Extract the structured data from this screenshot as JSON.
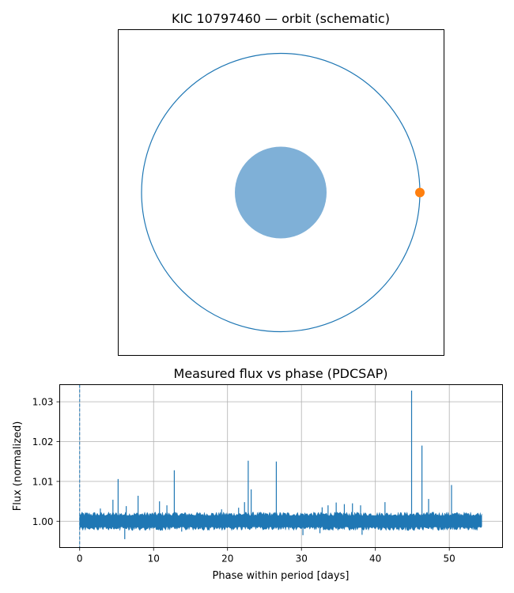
{
  "chart_data": [
    {
      "type": "scatter",
      "title": "KIC 10797460 — orbit (schematic)",
      "axes_visible": false,
      "orbit": {
        "shape": "circle",
        "color": "#1f77b4"
      },
      "star": {
        "color": "#7fb0d7"
      },
      "planet": {
        "position": "right",
        "color": "#ff7f0e"
      }
    },
    {
      "type": "line",
      "title": "Measured flux vs phase (PDCSAP)",
      "xlabel": "Phase within period [days]",
      "ylabel": "Flux (normalized)",
      "xlim": [
        -2.7,
        57.2
      ],
      "ylim": [
        0.9934,
        1.0343
      ],
      "xticks": [
        "0",
        "10",
        "20",
        "30",
        "40",
        "50"
      ],
      "xtick_values": [
        0,
        10,
        20,
        30,
        40,
        50
      ],
      "yticks": [
        "1.00",
        "1.01",
        "1.02",
        "1.03"
      ],
      "ytick_values": [
        1.0,
        1.01,
        1.02,
        1.03
      ],
      "grid": true,
      "series_color": "#1f77b4",
      "phase_range": [
        0,
        54.4
      ],
      "baseline": 1.0,
      "noise_band": [
        0.9985,
        1.0015
      ],
      "vertical_marker": {
        "x": 0,
        "style": "dashed",
        "color": "#1f77b4"
      },
      "spikes": [
        {
          "x": 2.8,
          "y": 1.0032
        },
        {
          "x": 4.5,
          "y": 1.0054
        },
        {
          "x": 5.2,
          "y": 1.0106
        },
        {
          "x": 6.3,
          "y": 1.0038
        },
        {
          "x": 7.9,
          "y": 1.0064
        },
        {
          "x": 10.8,
          "y": 1.005
        },
        {
          "x": 11.8,
          "y": 1.004
        },
        {
          "x": 12.8,
          "y": 1.0128
        },
        {
          "x": 19.2,
          "y": 1.003
        },
        {
          "x": 21.5,
          "y": 1.0034
        },
        {
          "x": 22.3,
          "y": 1.0048
        },
        {
          "x": 22.8,
          "y": 1.0152
        },
        {
          "x": 23.2,
          "y": 1.008
        },
        {
          "x": 26.6,
          "y": 1.015
        },
        {
          "x": 32.8,
          "y": 1.0035
        },
        {
          "x": 33.6,
          "y": 1.004
        },
        {
          "x": 34.7,
          "y": 1.0047
        },
        {
          "x": 35.8,
          "y": 1.0043
        },
        {
          "x": 36.9,
          "y": 1.0045
        },
        {
          "x": 38.0,
          "y": 1.004
        },
        {
          "x": 41.3,
          "y": 1.0048
        },
        {
          "x": 44.9,
          "y": 1.0328
        },
        {
          "x": 46.3,
          "y": 1.019
        },
        {
          "x": 47.2,
          "y": 1.0056
        },
        {
          "x": 50.3,
          "y": 1.0091
        }
      ],
      "dips": [
        {
          "x": 0.5,
          "y": 0.9982
        },
        {
          "x": 6.1,
          "y": 0.9955
        },
        {
          "x": 13.8,
          "y": 0.9974
        },
        {
          "x": 30.2,
          "y": 0.9965
        },
        {
          "x": 32.5,
          "y": 0.997
        },
        {
          "x": 38.2,
          "y": 0.9966
        },
        {
          "x": 44.7,
          "y": 0.9979
        }
      ]
    }
  ]
}
